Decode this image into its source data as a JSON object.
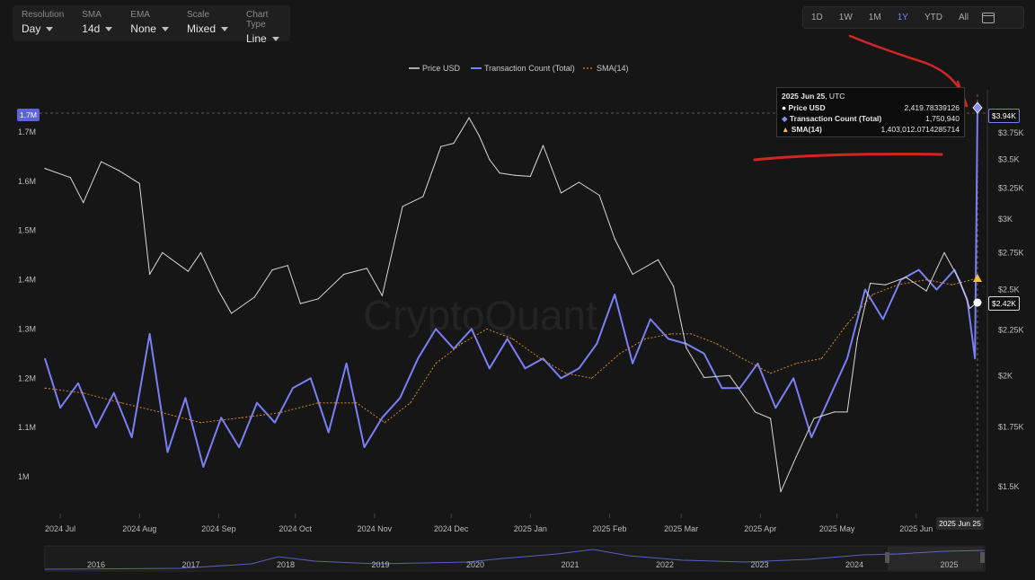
{
  "toolbar": {
    "items": [
      {
        "label": "Resolution",
        "value": "Day"
      },
      {
        "label": "SMA",
        "value": "14d"
      },
      {
        "label": "EMA",
        "value": "None"
      },
      {
        "label": "Scale",
        "value": "Mixed"
      },
      {
        "label": "Chart Type",
        "value": "Line"
      }
    ]
  },
  "ranges": {
    "items": [
      "1D",
      "1W",
      "1M",
      "1Y",
      "YTD",
      "All"
    ],
    "active": "1Y"
  },
  "legend": [
    "Price USD",
    "Transaction Count (Total)",
    "SMA(14)"
  ],
  "watermark": "CryptoQuant",
  "tooltip": {
    "date": "2025 Jun 25",
    "tz": ", UTC",
    "rows": [
      {
        "label": "Price USD",
        "value": "2,419.78339126"
      },
      {
        "label": "Transaction Count (Total)",
        "value": "1,750,940"
      },
      {
        "label": "SMA(14)",
        "value": "1,403,012.0714285714"
      }
    ]
  },
  "badges": {
    "left_top": "1.7M",
    "right_price": "$2.42K",
    "right_top": "$3.94K",
    "bottom_date": "2025 Jun 25"
  },
  "navigator_years": [
    "2016",
    "2017",
    "2018",
    "2019",
    "2020",
    "2021",
    "2022",
    "2023",
    "2024",
    "2025"
  ],
  "colors": {
    "background": "#161616",
    "price": "#d9d9d9",
    "tx": "#7b7ff5",
    "sma": "#d2891f",
    "annotation": "#d42525"
  },
  "chart_data": {
    "type": "line",
    "x_ticks": [
      "2024 Jul",
      "2024 Aug",
      "2024 Sep",
      "2024 Oct",
      "2024 Nov",
      "2024 Dec",
      "2025 Jan",
      "2025 Feb",
      "2025 Mar",
      "2025 Apr",
      "2025 May",
      "2025 Jun"
    ],
    "left_axis": {
      "ticks": [
        "1M",
        "1.1M",
        "1.2M",
        "1.3M",
        "1.4M",
        "1.5M",
        "1.6M",
        "1.7M"
      ],
      "range": [
        960000,
        1720000
      ]
    },
    "right_axis": {
      "ticks": [
        "$1.5K",
        "$1.75K",
        "$2K",
        "$2.25K",
        "$2.5K",
        "$2.75K",
        "$3K",
        "$3.25K",
        "$3.5K",
        "$3.75K"
      ],
      "range": [
        1350,
        4000
      ]
    },
    "series": [
      {
        "name": "Price USD",
        "axis": "right",
        "x": [
          "2024-06-25",
          "2024-07-05",
          "2024-07-10",
          "2024-07-17",
          "2024-07-24",
          "2024-08-01",
          "2024-08-05",
          "2024-08-10",
          "2024-08-20",
          "2024-08-25",
          "2024-09-01",
          "2024-09-06",
          "2024-09-15",
          "2024-09-22",
          "2024-09-28",
          "2024-10-03",
          "2024-10-10",
          "2024-10-20",
          "2024-10-29",
          "2024-11-04",
          "2024-11-12",
          "2024-11-20",
          "2024-11-27",
          "2024-12-02",
          "2024-12-08",
          "2024-12-12",
          "2024-12-16",
          "2024-12-20",
          "2024-12-26",
          "2025-01-01",
          "2025-01-06",
          "2025-01-13",
          "2025-01-20",
          "2025-01-28",
          "2025-02-03",
          "2025-02-10",
          "2025-02-20",
          "2025-02-26",
          "2025-03-03",
          "2025-03-10",
          "2025-03-20",
          "2025-03-30",
          "2025-04-05",
          "2025-04-09",
          "2025-04-15",
          "2025-04-22",
          "2025-04-30",
          "2025-05-05",
          "2025-05-09",
          "2025-05-14",
          "2025-05-20",
          "2025-05-28",
          "2025-06-05",
          "2025-06-12",
          "2025-06-18",
          "2025-06-22",
          "2025-06-25"
        ],
        "values": [
          3420,
          3340,
          3130,
          3480,
          3400,
          3290,
          2600,
          2750,
          2620,
          2750,
          2490,
          2350,
          2450,
          2630,
          2660,
          2410,
          2440,
          2600,
          2640,
          2460,
          3100,
          3180,
          3620,
          3650,
          3900,
          3720,
          3500,
          3380,
          3360,
          3350,
          3630,
          3210,
          3300,
          3190,
          2850,
          2600,
          2700,
          2520,
          2150,
          1990,
          2000,
          1820,
          1790,
          1480,
          1620,
          1790,
          1820,
          1820,
          2200,
          2540,
          2530,
          2580,
          2490,
          2750,
          2560,
          2380,
          2420
        ]
      },
      {
        "name": "Transaction Count (Total)",
        "axis": "left",
        "x": [
          "2024-06-25",
          "2024-07-01",
          "2024-07-08",
          "2024-07-15",
          "2024-07-22",
          "2024-07-29",
          "2024-08-05",
          "2024-08-12",
          "2024-08-19",
          "2024-08-26",
          "2024-09-02",
          "2024-09-09",
          "2024-09-16",
          "2024-09-23",
          "2024-09-30",
          "2024-10-07",
          "2024-10-14",
          "2024-10-21",
          "2024-10-28",
          "2024-11-04",
          "2024-11-11",
          "2024-11-18",
          "2024-11-25",
          "2024-12-02",
          "2024-12-09",
          "2024-12-16",
          "2024-12-23",
          "2024-12-30",
          "2025-01-06",
          "2025-01-13",
          "2025-01-20",
          "2025-01-27",
          "2025-02-03",
          "2025-02-10",
          "2025-02-17",
          "2025-02-24",
          "2025-03-03",
          "2025-03-10",
          "2025-03-17",
          "2025-03-24",
          "2025-03-31",
          "2025-04-07",
          "2025-04-14",
          "2025-04-21",
          "2025-04-28",
          "2025-05-05",
          "2025-05-12",
          "2025-05-19",
          "2025-05-26",
          "2025-06-02",
          "2025-06-09",
          "2025-06-16",
          "2025-06-21",
          "2025-06-24",
          "2025-06-25"
        ],
        "values": [
          1240000,
          1140000,
          1190000,
          1100000,
          1170000,
          1080000,
          1290000,
          1050000,
          1160000,
          1020000,
          1120000,
          1060000,
          1150000,
          1110000,
          1180000,
          1200000,
          1090000,
          1230000,
          1060000,
          1120000,
          1160000,
          1240000,
          1300000,
          1260000,
          1300000,
          1220000,
          1280000,
          1220000,
          1240000,
          1200000,
          1220000,
          1270000,
          1370000,
          1230000,
          1320000,
          1280000,
          1270000,
          1250000,
          1180000,
          1180000,
          1230000,
          1140000,
          1200000,
          1080000,
          1160000,
          1240000,
          1380000,
          1320000,
          1400000,
          1420000,
          1380000,
          1420000,
          1360000,
          1240000,
          1750940
        ]
      },
      {
        "name": "SMA(14)",
        "axis": "left",
        "x": [
          "2024-06-25",
          "2024-07-10",
          "2024-07-25",
          "2024-08-10",
          "2024-08-25",
          "2024-09-10",
          "2024-09-25",
          "2024-10-10",
          "2024-10-25",
          "2024-11-05",
          "2024-11-15",
          "2024-11-25",
          "2024-12-05",
          "2024-12-15",
          "2024-12-25",
          "2025-01-05",
          "2025-01-15",
          "2025-01-25",
          "2025-02-05",
          "2025-02-15",
          "2025-02-25",
          "2025-03-05",
          "2025-03-15",
          "2025-03-25",
          "2025-04-05",
          "2025-04-15",
          "2025-04-25",
          "2025-05-05",
          "2025-05-15",
          "2025-05-25",
          "2025-06-05",
          "2025-06-15",
          "2025-06-25"
        ],
        "values": [
          1180000,
          1170000,
          1150000,
          1130000,
          1110000,
          1120000,
          1130000,
          1150000,
          1150000,
          1110000,
          1150000,
          1230000,
          1270000,
          1300000,
          1280000,
          1240000,
          1210000,
          1200000,
          1250000,
          1280000,
          1290000,
          1290000,
          1270000,
          1240000,
          1210000,
          1230000,
          1240000,
          1310000,
          1370000,
          1390000,
          1400000,
          1390000,
          1403012
        ]
      }
    ]
  }
}
